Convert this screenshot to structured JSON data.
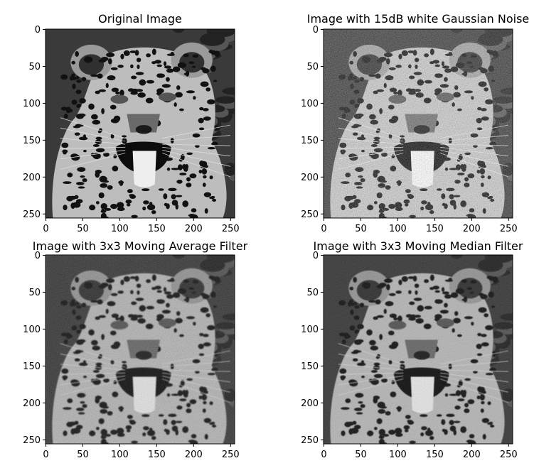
{
  "figure": {
    "layout": "2x2 image grid",
    "colormap": "gray",
    "background": "#ffffff"
  },
  "chart_data": [
    {
      "type": "heatmap",
      "title": "Original Image",
      "xlabel": "",
      "ylabel": "",
      "xlim": [
        0,
        255
      ],
      "ylim": [
        255,
        0
      ],
      "xticks": [
        0,
        50,
        100,
        150,
        200,
        250
      ],
      "yticks": [
        0,
        50,
        100,
        150,
        200,
        250
      ],
      "image_content": "leopard photograph, grayscale",
      "noise_level": 0,
      "blur_level": 0,
      "brightness": 1.0,
      "grid": false
    },
    {
      "type": "heatmap",
      "title": "Image with 15dB white Gaussian Noise",
      "xlabel": "",
      "ylabel": "",
      "xlim": [
        0,
        255
      ],
      "ylim": [
        255,
        0
      ],
      "xticks": [
        0,
        50,
        100,
        150,
        200,
        250
      ],
      "yticks": [
        0,
        50,
        100,
        150,
        200,
        250
      ],
      "image_content": "leopard photograph with additive white Gaussian noise",
      "noise_level": 0.55,
      "blur_level": 0,
      "brightness": 1.25,
      "grid": false
    },
    {
      "type": "heatmap",
      "title": "Image with 3x3 Moving Average Filter",
      "xlabel": "",
      "ylabel": "",
      "xlim": [
        0,
        255
      ],
      "ylim": [
        255,
        0
      ],
      "xticks": [
        0,
        50,
        100,
        150,
        200,
        250
      ],
      "yticks": [
        0,
        50,
        100,
        150,
        200,
        250
      ],
      "image_content": "noisy leopard photograph after 3x3 moving average filter",
      "noise_level": 0.28,
      "blur_level": 0.6,
      "brightness": 1.0,
      "grid": false
    },
    {
      "type": "heatmap",
      "title": "Image with 3x3 Moving Median Filter",
      "xlabel": "",
      "ylabel": "",
      "xlim": [
        0,
        255
      ],
      "ylim": [
        255,
        0
      ],
      "xticks": [
        0,
        50,
        100,
        150,
        200,
        250
      ],
      "yticks": [
        0,
        50,
        100,
        150,
        200,
        250
      ],
      "image_content": "noisy leopard photograph after 3x3 moving median filter",
      "noise_level": 0.22,
      "blur_level": 0.45,
      "brightness": 1.0,
      "grid": false
    }
  ]
}
